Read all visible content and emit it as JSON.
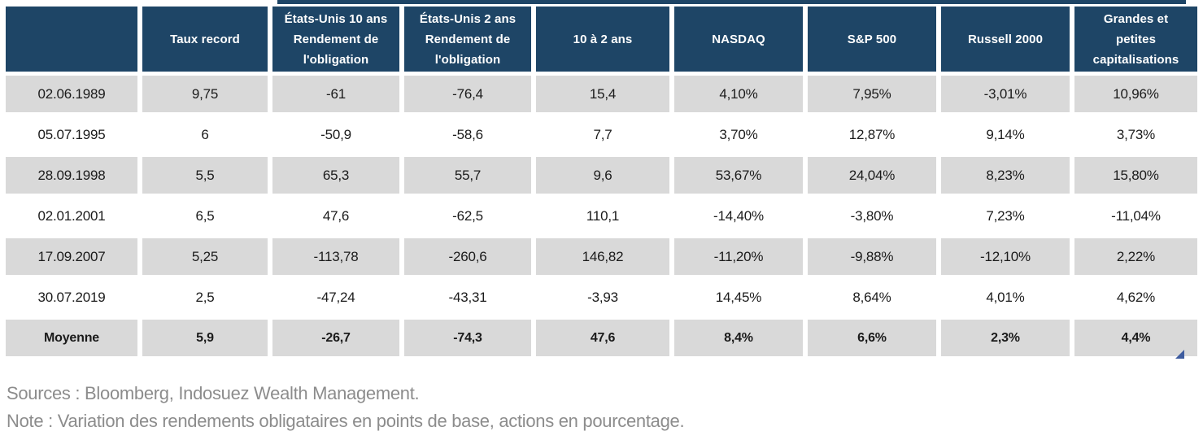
{
  "table": {
    "headers": [
      "",
      "Taux record",
      "États-Unis 10 ans\nRendement de\nl'obligation",
      "États-Unis 2 ans\nRendement de\nl'obligation",
      "10 à 2 ans",
      "NASDAQ",
      "S&P 500",
      "Russell 2000",
      "Grandes et\npetites\ncapitalisations"
    ],
    "rows": [
      {
        "date": "02.06.1989",
        "values": [
          "9,75",
          "-61",
          "-76,4",
          "15,4",
          "4,10%",
          "7,95%",
          "-3,01%",
          "10,96%"
        ]
      },
      {
        "date": "05.07.1995",
        "values": [
          "6",
          "-50,9",
          "-58,6",
          "7,7",
          "3,70%",
          "12,87%",
          "9,14%",
          "3,73%"
        ]
      },
      {
        "date": "28.09.1998",
        "values": [
          "5,5",
          "65,3",
          "55,7",
          "9,6",
          "53,67%",
          "24,04%",
          "8,23%",
          "15,80%"
        ]
      },
      {
        "date": "02.01.2001",
        "values": [
          "6,5",
          "47,6",
          "-62,5",
          "110,1",
          "-14,40%",
          "-3,80%",
          "7,23%",
          "-11,04%"
        ]
      },
      {
        "date": "17.09.2007",
        "values": [
          "5,25",
          "-113,78",
          "-260,6",
          "146,82",
          "-11,20%",
          "-9,88%",
          "-12,10%",
          "2,22%"
        ]
      },
      {
        "date": "30.07.2019",
        "values": [
          "2,5",
          "-47,24",
          "-43,31",
          "-3,93",
          "14,45%",
          "8,64%",
          "4,01%",
          "4,62%"
        ]
      }
    ],
    "average": {
      "label": "Moyenne",
      "values": [
        "5,9",
        "-26,7",
        "-74,3",
        "47,6",
        "8,4%",
        "6,6%",
        "2,3%",
        "4,4%"
      ]
    }
  },
  "footer": {
    "sources": "Sources : Bloomberg, Indosuez Wealth Management.",
    "note": "Note : Variation des rendements obligataires en points de base, actions en pourcentage."
  },
  "colors": {
    "header_bg": "#1E4566",
    "row_gray": "#D9D9D9",
    "corner_marker": "#3E5C9F",
    "footer_text": "#8C8C8C"
  }
}
